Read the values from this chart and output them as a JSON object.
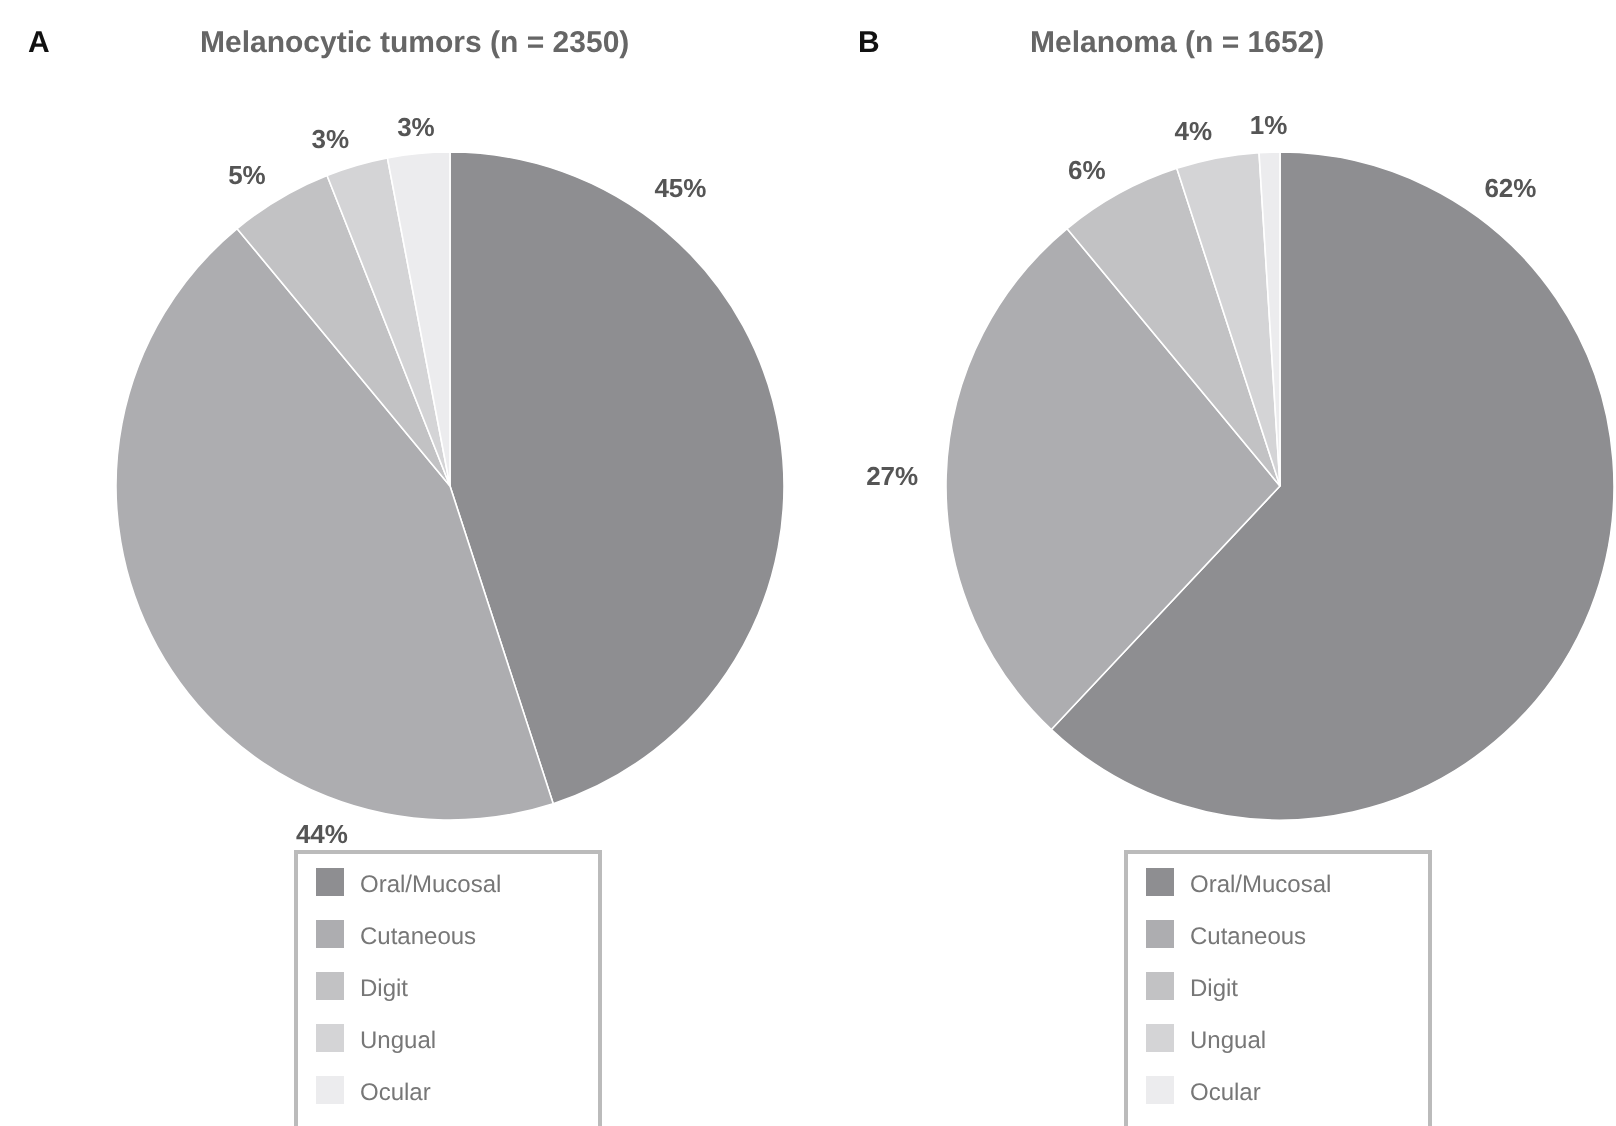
{
  "chart_data": [
    {
      "type": "pie",
      "title": "Melanocytic tumors (n = 2350)",
      "annotations": [
        "A"
      ],
      "categories": [
        "Oral/Mucosal",
        "Cutaneous",
        "Digit",
        "Ungual",
        "Ocular"
      ],
      "values": [
        45,
        44,
        5,
        3,
        3
      ],
      "value_labels": [
        "45%",
        "44%",
        "5%",
        "3%",
        "3%"
      ],
      "colors": [
        "#8e8e91",
        "#adadb0",
        "#c2c2c4",
        "#d4d4d6",
        "#ececee"
      ],
      "legend": "bottom"
    },
    {
      "type": "pie",
      "title": "Melanoma (n = 1652)",
      "annotations": [
        "B"
      ],
      "categories": [
        "Oral/Mucosal",
        "Cutaneous",
        "Digit",
        "Ungual",
        "Ocular"
      ],
      "values": [
        62,
        27,
        6,
        4,
        1
      ],
      "value_labels": [
        "62%",
        "27%",
        "6%",
        "4%",
        "1%"
      ],
      "colors": [
        "#8e8e91",
        "#adadb0",
        "#c2c2c4",
        "#d4d4d6",
        "#ececee"
      ],
      "legend": "bottom"
    }
  ]
}
